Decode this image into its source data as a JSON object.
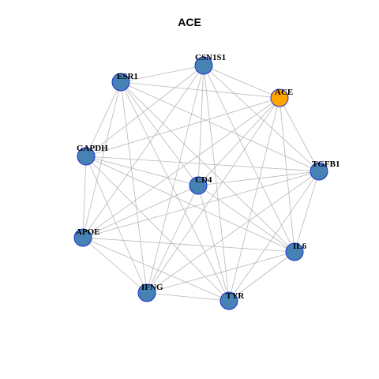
{
  "title": "ACE",
  "colors": {
    "node_default": "#4682B4",
    "node_highlight": "#FFA500",
    "node_border": "#1F2FD0",
    "edge": "#B8B8B8"
  },
  "nodes": [
    {
      "id": "CSN1S1",
      "label": "CSN1S1",
      "highlight": false
    },
    {
      "id": "ESR1",
      "label": "ESR1",
      "highlight": false
    },
    {
      "id": "ACE",
      "label": "ACE",
      "highlight": true
    },
    {
      "id": "GAPDH",
      "label": "GAPDH",
      "highlight": false
    },
    {
      "id": "TGFB1",
      "label": "TGFB1",
      "highlight": false
    },
    {
      "id": "CD4",
      "label": "CD4",
      "highlight": false
    },
    {
      "id": "APOE",
      "label": "APOE",
      "highlight": false
    },
    {
      "id": "IL6",
      "label": "IL6",
      "highlight": false
    },
    {
      "id": "IFNG",
      "label": "IFNG",
      "highlight": false
    },
    {
      "id": "TYR",
      "label": "TYR",
      "highlight": false
    }
  ],
  "edges": [
    [
      "ESR1",
      "CSN1S1"
    ],
    [
      "ESR1",
      "ACE"
    ],
    [
      "ESR1",
      "GAPDH"
    ],
    [
      "ESR1",
      "APOE"
    ],
    [
      "ESR1",
      "IFNG"
    ],
    [
      "ESR1",
      "TYR"
    ],
    [
      "ESR1",
      "IL6"
    ],
    [
      "ESR1",
      "TGFB1"
    ],
    [
      "ESR1",
      "CD4"
    ],
    [
      "CSN1S1",
      "ACE"
    ],
    [
      "CSN1S1",
      "GAPDH"
    ],
    [
      "CSN1S1",
      "APOE"
    ],
    [
      "CSN1S1",
      "IFNG"
    ],
    [
      "CSN1S1",
      "TYR"
    ],
    [
      "CSN1S1",
      "IL6"
    ],
    [
      "CSN1S1",
      "TGFB1"
    ],
    [
      "CSN1S1",
      "CD4"
    ],
    [
      "ACE",
      "GAPDH"
    ],
    [
      "ACE",
      "TGFB1"
    ],
    [
      "ACE",
      "IL6"
    ],
    [
      "ACE",
      "TYR"
    ],
    [
      "ACE",
      "IFNG"
    ],
    [
      "ACE",
      "APOE"
    ],
    [
      "ACE",
      "CD4"
    ],
    [
      "GAPDH",
      "TGFB1"
    ],
    [
      "GAPDH",
      "APOE"
    ],
    [
      "GAPDH",
      "IFNG"
    ],
    [
      "GAPDH",
      "TYR"
    ],
    [
      "GAPDH",
      "IL6"
    ],
    [
      "GAPDH",
      "CD4"
    ],
    [
      "TGFB1",
      "IL6"
    ],
    [
      "TGFB1",
      "APOE"
    ],
    [
      "TGFB1",
      "IFNG"
    ],
    [
      "TGFB1",
      "TYR"
    ],
    [
      "TGFB1",
      "CD4"
    ],
    [
      "CD4",
      "APOE"
    ],
    [
      "CD4",
      "IFNG"
    ],
    [
      "CD4",
      "TYR"
    ],
    [
      "CD4",
      "IL6"
    ],
    [
      "APOE",
      "IFNG"
    ],
    [
      "APOE",
      "TYR"
    ],
    [
      "APOE",
      "IL6"
    ],
    [
      "IFNG",
      "TYR"
    ],
    [
      "IFNG",
      "IL6"
    ],
    [
      "TYR",
      "IL6"
    ]
  ]
}
